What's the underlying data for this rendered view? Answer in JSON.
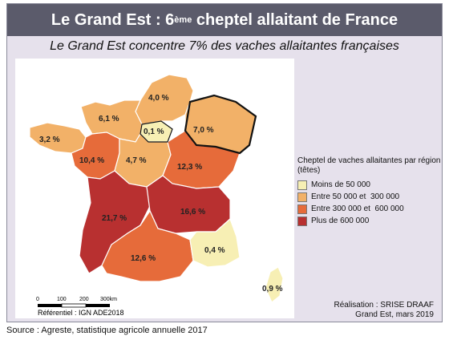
{
  "title": {
    "main": "Le Grand Est : 6",
    "sup": "ème",
    "rest": " cheptel allaitant de France"
  },
  "subtitle": "Le Grand Est concentre 7% des vaches allaitantes françaises",
  "legend": {
    "title": "Cheptel de vaches allaitantes par région (têtes)",
    "items": [
      {
        "label": "Moins de 50 000",
        "color": "#f7efb4"
      },
      {
        "label": "Entre 50 000 et  300 000",
        "color": "#f2b168"
      },
      {
        "label": "Entre 300 000 et  600 000",
        "color": "#e66b3a"
      },
      {
        "label": "Plus de 600 000",
        "color": "#b83030"
      }
    ]
  },
  "regions": [
    {
      "id": "hauts-de-france",
      "pct": "4,0 %",
      "color": "#f2b168"
    },
    {
      "id": "normandie",
      "pct": "6,1 %",
      "color": "#f2b168"
    },
    {
      "id": "ile-de-france",
      "pct": "0,1 %",
      "color": "#f7efb4"
    },
    {
      "id": "grand-est",
      "pct": "7,0 %",
      "color": "#f2b168"
    },
    {
      "id": "bretagne",
      "pct": "3,2 %",
      "color": "#f2b168"
    },
    {
      "id": "pays-de-la-loire",
      "pct": "10,4 %",
      "color": "#e66b3a"
    },
    {
      "id": "centre-val-de-loire",
      "pct": "4,7 %",
      "color": "#f2b168"
    },
    {
      "id": "bourgogne-franche-comte",
      "pct": "12,3 %",
      "color": "#e66b3a"
    },
    {
      "id": "nouvelle-aquitaine",
      "pct": "21,7 %",
      "color": "#b83030"
    },
    {
      "id": "auvergne-rhone-alpes",
      "pct": "16,6 %",
      "color": "#b83030"
    },
    {
      "id": "occitanie",
      "pct": "12,6 %",
      "color": "#e66b3a"
    },
    {
      "id": "paca",
      "pct": "0,4 %",
      "color": "#f7efb4"
    },
    {
      "id": "corse",
      "pct": "0,9 %",
      "color": "#f7efb4"
    }
  ],
  "scale": {
    "ticks": [
      "0",
      "100",
      "200",
      "300km"
    ],
    "referentiel": "Référentiel : IGN ADE2018"
  },
  "credit": {
    "line1": "Réalisation : SRISE DRAAF",
    "line2": "Grand Est, mars 2019"
  },
  "source": "Source : Agreste, statistique agricole annuelle 2017"
}
